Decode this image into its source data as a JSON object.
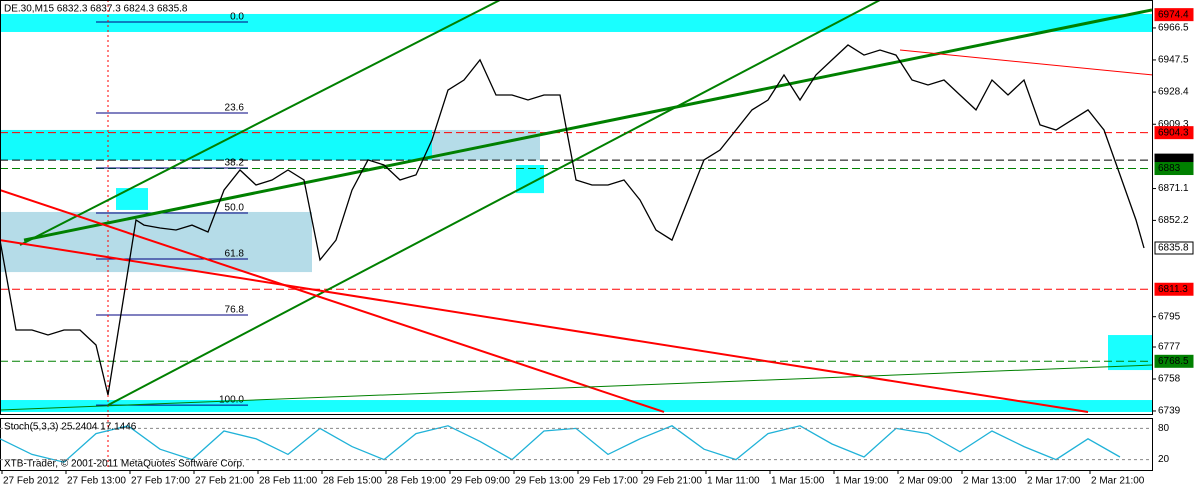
{
  "footer": "XTB-Trader, © 2001-2011 MetaQuotes Software Corp.",
  "chart_data": [
    {
      "type": "line",
      "title": "DE.30,M15  6832.3 6837.3 6824.3 6835.8",
      "color": "#000000",
      "x": [
        0,
        4,
        8,
        12,
        16,
        20,
        24,
        27,
        30,
        32,
        34,
        36,
        40,
        44,
        48,
        52,
        56,
        60,
        64,
        68,
        72,
        76,
        80,
        84,
        88,
        92,
        96,
        100,
        104,
        108,
        112,
        116,
        120,
        124,
        128,
        132,
        136,
        140,
        144,
        148,
        152,
        156,
        160,
        164,
        168,
        172,
        176,
        180,
        184,
        188,
        192,
        196,
        200,
        204,
        208,
        212,
        216,
        220,
        224,
        228,
        232,
        236,
        240,
        244,
        248,
        252,
        256,
        260,
        264,
        268,
        272,
        276,
        280,
        284,
        286
      ],
      "values": [
        6840.5,
        6787.1,
        6787.1,
        6784.1,
        6787.1,
        6787.1,
        6778.2,
        6748.5,
        6793.0,
        6822.7,
        6852.4,
        6849.4,
        6847.7,
        6846.5,
        6849.4,
        6845.3,
        6870.2,
        6882.1,
        6873.2,
        6876.2,
        6882.1,
        6876.2,
        6828.7,
        6840.5,
        6870.2,
        6888.1,
        6885.1,
        6876.2,
        6879.2,
        6900.0,
        6929.6,
        6935.6,
        6947.5,
        6926.7,
        6926.7,
        6923.7,
        6926.7,
        6926.7,
        6876.2,
        6873.2,
        6873.2,
        6876.2,
        6864.3,
        6846.5,
        6840.5,
        6864.3,
        6888.1,
        6894.0,
        6905.9,
        6917.8,
        6923.7,
        6938.6,
        6923.7,
        6938.6,
        6947.5,
        6956.4,
        6950.4,
        6953.4,
        6950.4,
        6935.6,
        6932.6,
        6935.6,
        6926.7,
        6917.8,
        6935.6,
        6926.7,
        6935.6,
        6908.9,
        6905.9,
        6911.9,
        6917.8,
        6905.9,
        6879.2,
        6852.4,
        6835.8
      ],
      "xlim": [
        0,
        288
      ],
      "ylim": [
        6737.2,
        6983.1
      ],
      "xticks": [
        {
          "value": 0,
          "label": "27 Feb 2012"
        },
        {
          "value": 16,
          "label": "27 Feb 13:00"
        },
        {
          "value": 32,
          "label": "27 Feb 17:00"
        },
        {
          "value": 48,
          "label": "27 Feb 21:00"
        },
        {
          "value": 64,
          "label": "28 Feb 11:00"
        },
        {
          "value": 80,
          "label": "28 Feb 15:00"
        },
        {
          "value": 96,
          "label": "28 Feb 19:00"
        },
        {
          "value": 112,
          "label": "29 Feb 09:00"
        },
        {
          "value": 128,
          "label": "29 Feb 13:00"
        },
        {
          "value": 144,
          "label": "29 Feb 17:00"
        },
        {
          "value": 160,
          "label": "29 Feb 21:00"
        },
        {
          "value": 176,
          "label": "1 Mar 11:00"
        },
        {
          "value": 192,
          "label": "1 Mar 15:00"
        },
        {
          "value": 208,
          "label": "1 Mar 19:00"
        },
        {
          "value": 224,
          "label": "2 Mar 09:00"
        },
        {
          "value": 240,
          "label": "2 Mar 13:00"
        },
        {
          "value": 256,
          "label": "2 Mar 17:00"
        },
        {
          "value": 272,
          "label": "2 Mar 21:00"
        }
      ],
      "yticks": [
        6966.5,
        6947.5,
        6928.4,
        6909.3,
        6871.1,
        6852.2,
        6795.0,
        6777.0,
        6758.0,
        6739.0
      ],
      "zones": [
        {
          "color": "#00ffff",
          "x": [
            0,
            288
          ],
          "y": [
            6964.1,
            6974.8
          ]
        },
        {
          "color": "#add8e6",
          "x": [
            0,
            135
          ],
          "y": [
            6888.0,
            6905.9
          ]
        },
        {
          "color": "#00ffff",
          "x": [
            0,
            108
          ],
          "y": [
            6888.0,
            6905.9
          ]
        },
        {
          "color": "#add8e6",
          "x": [
            0,
            78
          ],
          "y": [
            6821.5,
            6857.2
          ]
        },
        {
          "color": "#00ffff",
          "x": [
            29,
            37
          ],
          "y": [
            6858.4,
            6871.4
          ]
        },
        {
          "color": "#00ffff",
          "x": [
            129,
            136
          ],
          "y": [
            6868.4,
            6885.1
          ]
        },
        {
          "color": "#00ffff",
          "x": [
            0,
            288
          ],
          "y": [
            6738.4,
            6745.5
          ]
        },
        {
          "color": "#00ffff",
          "x": [
            277,
            288
          ],
          "y": [
            6763.3,
            6784.1
          ]
        }
      ],
      "levels": [
        {
          "value": 6974.4,
          "color": "#ff0000",
          "text_color": "#ffffff",
          "dashed": false
        },
        {
          "value": 6904.3,
          "color": "#ff0000",
          "text_color": "#ffffff",
          "dashed": true
        },
        {
          "value": 6888.0,
          "color": "#000000",
          "text_color": "#ffffff",
          "dashed": true
        },
        {
          "value": 6883.0,
          "color": "#008000",
          "text_color": "#ffffff",
          "dashed": true
        },
        {
          "value": 6835.8,
          "color": "#ffffff",
          "text_color": "#000000",
          "dashed": false
        },
        {
          "value": 6811.3,
          "color": "#ff0000",
          "text_color": "#ffffff",
          "dashed": true
        },
        {
          "value": 6768.5,
          "color": "#008000",
          "text_color": "#ffffff",
          "dashed": true
        }
      ],
      "trendlines": [
        {
          "color": "#008000",
          "width": 3,
          "x": [
            6,
            288
          ],
          "y": [
            6840.5,
            6977.2
          ]
        },
        {
          "color": "#008000",
          "width": 2,
          "x": [
            5,
            125
          ],
          "y": [
            6837.6,
            6983.1
          ]
        },
        {
          "color": "#008000",
          "width": 2,
          "x": [
            27,
            220
          ],
          "y": [
            6742.5,
            6983.1
          ]
        },
        {
          "color": "#ff0000",
          "width": 2,
          "x": [
            0,
            166
          ],
          "y": [
            6870.2,
            6738.4
          ]
        },
        {
          "color": "#ff0000",
          "width": 2,
          "x": [
            0,
            272
          ],
          "y": [
            6840.5,
            6738.4
          ]
        },
        {
          "color": "#ff0000",
          "width": 1,
          "x": [
            225,
            288
          ],
          "y": [
            6953.4,
            6938.6
          ]
        },
        {
          "color": "#008000",
          "width": 1,
          "x": [
            0,
            288
          ],
          "y": [
            6739.6,
            6766.3
          ]
        }
      ],
      "vline": {
        "x": 27,
        "color": "#ff0000"
      },
      "fibonacci": {
        "color": "#000080",
        "x": [
          24,
          62
        ],
        "levels": [
          {
            "value": 6970.0,
            "label": "0.0"
          },
          {
            "value": 6916.0,
            "label": "23.6"
          },
          {
            "value": 6883.3,
            "label": "38.2"
          },
          {
            "value": 6856.6,
            "label": "50.0"
          },
          {
            "value": 6829.3,
            "label": "61.8"
          },
          {
            "value": 6796.0,
            "label": "76.8"
          },
          {
            "value": 6742.5,
            "label": "100.0"
          }
        ]
      }
    },
    {
      "type": "line",
      "title": "Stoch(5,3,3) 25.2404 17.1446",
      "color": "#20b2d8",
      "x": [
        0,
        8,
        16,
        24,
        32,
        40,
        48,
        56,
        64,
        72,
        80,
        88,
        96,
        104,
        112,
        120,
        128,
        136,
        144,
        152,
        160,
        168,
        176,
        184,
        192,
        200,
        208,
        216,
        224,
        232,
        240,
        248,
        256,
        264,
        272,
        280
      ],
      "values": [
        60,
        30,
        15,
        70,
        85,
        40,
        20,
        75,
        60,
        30,
        80,
        45,
        20,
        70,
        85,
        55,
        20,
        75,
        80,
        30,
        60,
        85,
        40,
        20,
        70,
        85,
        50,
        25,
        80,
        70,
        35,
        75,
        45,
        20,
        60,
        25
      ],
      "xlim": [
        0,
        288
      ],
      "ylim": [
        0,
        100
      ],
      "yticks": [
        80,
        20
      ]
    }
  ]
}
